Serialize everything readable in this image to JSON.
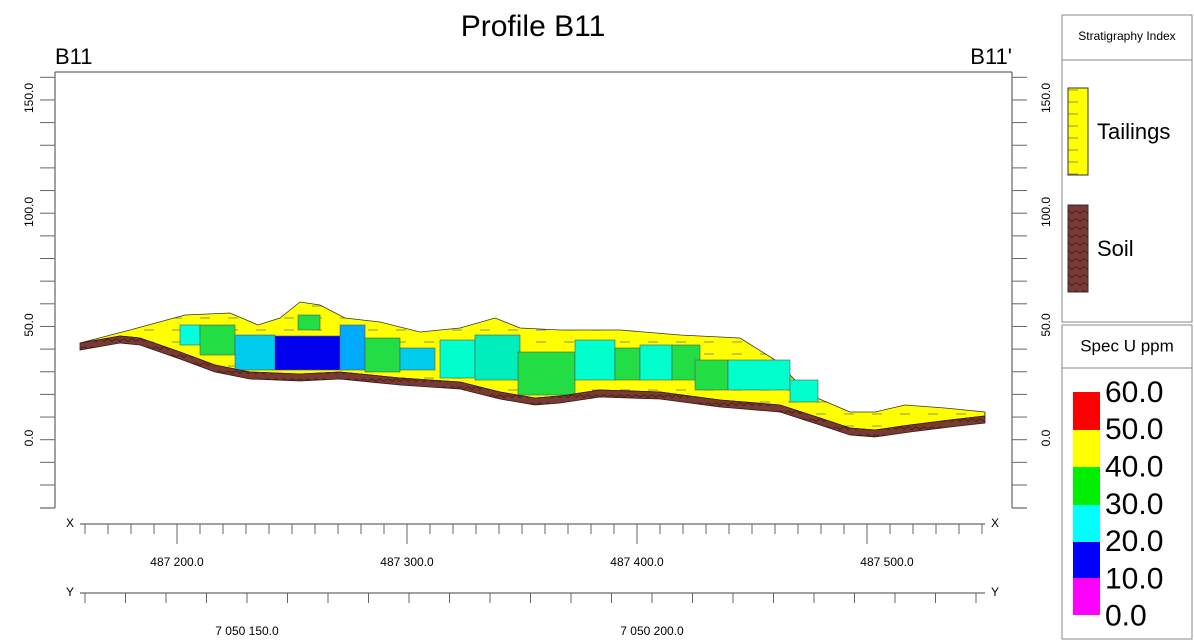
{
  "title": "Profile B11",
  "section": {
    "start": "B11",
    "end": "B11'"
  },
  "elevation_axis": {
    "ticks": [
      "150.0",
      "100.0",
      "50.0",
      "0.0"
    ]
  },
  "x_axis": {
    "label": "X",
    "ticks": [
      "487 200.0",
      "487 300.0",
      "487 400.0",
      "487 500.0"
    ]
  },
  "y_axis": {
    "label": "Y",
    "ticks": [
      "7 050 150.0",
      "7 050 200.0"
    ]
  },
  "stratigraphy_legend": {
    "title": "Stratigraphy Index",
    "items": [
      "Tailings",
      "Soil"
    ]
  },
  "grade_legend": {
    "title": "Spec U ppm",
    "labels": [
      "60.0",
      "50.0",
      "40.0",
      "30.0",
      "20.0",
      "10.0",
      "0.0"
    ]
  }
}
